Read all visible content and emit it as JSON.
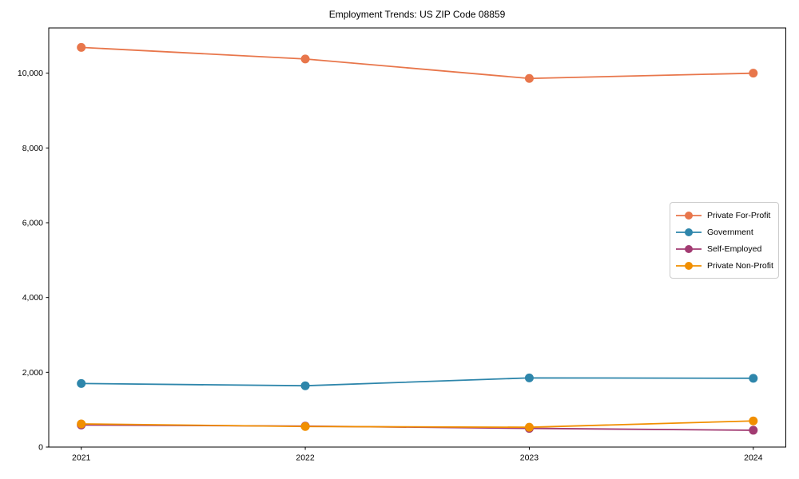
{
  "chart_data": {
    "type": "line",
    "title": "Employment Trends: US ZIP Code 08859",
    "x": [
      2021,
      2022,
      2023,
      2024
    ],
    "x_tick_labels": [
      "2021",
      "2022",
      "2023",
      "2024"
    ],
    "series": [
      {
        "name": "Private For-Profit",
        "color": "#E8764B",
        "values": [
          10690,
          10380,
          9860,
          10000
        ]
      },
      {
        "name": "Government",
        "color": "#2E86AB",
        "values": [
          1700,
          1640,
          1850,
          1840
        ]
      },
      {
        "name": "Self-Employed",
        "color": "#A23B72",
        "values": [
          590,
          560,
          500,
          450
        ]
      },
      {
        "name": "Private Non-Profit",
        "color": "#F18F01",
        "values": [
          620,
          550,
          530,
          700
        ]
      }
    ],
    "yticks": [
      0,
      2000,
      4000,
      6000,
      8000,
      10000
    ],
    "ytick_labels": [
      "0",
      "2,000",
      "4,000",
      "6,000",
      "8,000",
      "10,000"
    ],
    "ylim": [
      0,
      11210
    ],
    "xlabel": "",
    "ylabel": "",
    "grid": false,
    "legend_position": "center right",
    "marker": "circle",
    "background_color": "#ffffff",
    "axes_color": "#000000"
  }
}
